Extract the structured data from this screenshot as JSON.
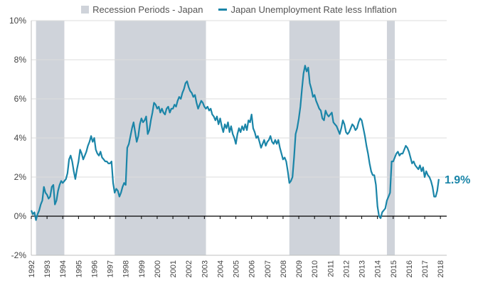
{
  "chart_data": {
    "type": "line",
    "legend": [
      {
        "name": "Recession Periods - Japan",
        "color": "#cfd3da"
      },
      {
        "name": "Japan Unemployment Rate less Inflation",
        "color": "#1a85a8"
      }
    ],
    "x_ticks": [
      "1992",
      "1993",
      "1994",
      "1995",
      "1996",
      "1997",
      "1998",
      "1999",
      "2000",
      "2001",
      "2002",
      "2003",
      "2004",
      "2005",
      "2006",
      "2007",
      "2008",
      "2009",
      "2010",
      "2011",
      "2012",
      "2013",
      "2014",
      "2015",
      "2016",
      "2017",
      "2018"
    ],
    "y_ticks": [
      "-2%",
      "0%",
      "2%",
      "4%",
      "6%",
      "8%",
      "10%"
    ],
    "y_tick_values": [
      -2,
      0,
      2,
      4,
      6,
      8,
      10
    ],
    "xlim": [
      1992.0,
      2018.4
    ],
    "ylim": [
      -2,
      10
    ],
    "recessions": [
      {
        "start": 1992.3,
        "end": 1994.1
      },
      {
        "start": 1997.3,
        "end": 2003.1
      },
      {
        "start": 2008.4,
        "end": 2011.6
      },
      {
        "start": 2014.6,
        "end": 2015.1
      }
    ],
    "end_label": "1.9%",
    "series": [
      {
        "color": "#1a85a8",
        "points": [
          [
            1992.0,
            0.3
          ],
          [
            1992.1,
            0.1
          ],
          [
            1992.2,
            0.2
          ],
          [
            1992.3,
            -0.2
          ],
          [
            1992.4,
            0.1
          ],
          [
            1992.5,
            0.3
          ],
          [
            1992.6,
            0.6
          ],
          [
            1992.7,
            0.8
          ],
          [
            1992.8,
            1.5
          ],
          [
            1992.9,
            1.2
          ],
          [
            1993.0,
            1.1
          ],
          [
            1993.1,
            0.9
          ],
          [
            1993.2,
            1.0
          ],
          [
            1993.3,
            1.5
          ],
          [
            1993.4,
            1.6
          ],
          [
            1993.5,
            0.6
          ],
          [
            1993.6,
            0.8
          ],
          [
            1993.7,
            1.3
          ],
          [
            1993.8,
            1.6
          ],
          [
            1993.9,
            1.8
          ],
          [
            1994.0,
            1.7
          ],
          [
            1994.1,
            1.8
          ],
          [
            1994.2,
            1.9
          ],
          [
            1994.3,
            2.2
          ],
          [
            1994.4,
            2.9
          ],
          [
            1994.5,
            3.1
          ],
          [
            1994.6,
            2.8
          ],
          [
            1994.7,
            2.3
          ],
          [
            1994.8,
            1.9
          ],
          [
            1994.9,
            2.4
          ],
          [
            1995.0,
            2.8
          ],
          [
            1995.1,
            3.4
          ],
          [
            1995.2,
            3.2
          ],
          [
            1995.3,
            2.9
          ],
          [
            1995.4,
            3.1
          ],
          [
            1995.5,
            3.3
          ],
          [
            1995.6,
            3.6
          ],
          [
            1995.7,
            3.8
          ],
          [
            1995.8,
            4.1
          ],
          [
            1995.9,
            3.8
          ],
          [
            1996.0,
            4.0
          ],
          [
            1996.1,
            3.4
          ],
          [
            1996.2,
            3.2
          ],
          [
            1996.3,
            3.1
          ],
          [
            1996.4,
            3.3
          ],
          [
            1996.5,
            3.0
          ],
          [
            1996.6,
            2.9
          ],
          [
            1996.7,
            2.8
          ],
          [
            1996.8,
            2.8
          ],
          [
            1996.9,
            2.7
          ],
          [
            1997.0,
            2.7
          ],
          [
            1997.1,
            2.8
          ],
          [
            1997.2,
            1.7
          ],
          [
            1997.3,
            1.2
          ],
          [
            1997.4,
            1.4
          ],
          [
            1997.5,
            1.3
          ],
          [
            1997.6,
            1.0
          ],
          [
            1997.7,
            1.2
          ],
          [
            1997.8,
            1.5
          ],
          [
            1997.9,
            1.7
          ],
          [
            1998.0,
            1.6
          ],
          [
            1998.1,
            3.5
          ],
          [
            1998.2,
            3.7
          ],
          [
            1998.3,
            4.1
          ],
          [
            1998.4,
            4.5
          ],
          [
            1998.5,
            4.8
          ],
          [
            1998.6,
            4.3
          ],
          [
            1998.7,
            3.8
          ],
          [
            1998.8,
            4.1
          ],
          [
            1998.9,
            4.7
          ],
          [
            1999.0,
            5.0
          ],
          [
            1999.1,
            4.8
          ],
          [
            1999.2,
            4.9
          ],
          [
            1999.3,
            5.1
          ],
          [
            1999.4,
            4.2
          ],
          [
            1999.5,
            4.4
          ],
          [
            1999.6,
            4.9
          ],
          [
            1999.7,
            5.3
          ],
          [
            1999.8,
            5.8
          ],
          [
            1999.9,
            5.7
          ],
          [
            2000.0,
            5.5
          ],
          [
            2000.1,
            5.6
          ],
          [
            2000.2,
            5.3
          ],
          [
            2000.3,
            5.5
          ],
          [
            2000.4,
            5.3
          ],
          [
            2000.5,
            5.2
          ],
          [
            2000.6,
            5.5
          ],
          [
            2000.7,
            5.6
          ],
          [
            2000.8,
            5.3
          ],
          [
            2000.9,
            5.5
          ],
          [
            2001.0,
            5.5
          ],
          [
            2001.1,
            5.7
          ],
          [
            2001.2,
            5.6
          ],
          [
            2001.3,
            5.9
          ],
          [
            2001.4,
            6.1
          ],
          [
            2001.5,
            6.0
          ],
          [
            2001.6,
            6.3
          ],
          [
            2001.7,
            6.5
          ],
          [
            2001.8,
            6.8
          ],
          [
            2001.9,
            6.9
          ],
          [
            2002.0,
            6.6
          ],
          [
            2002.1,
            6.4
          ],
          [
            2002.2,
            6.3
          ],
          [
            2002.3,
            6.1
          ],
          [
            2002.4,
            6.2
          ],
          [
            2002.5,
            5.8
          ],
          [
            2002.6,
            5.5
          ],
          [
            2002.7,
            5.7
          ],
          [
            2002.8,
            5.9
          ],
          [
            2002.9,
            5.8
          ],
          [
            2003.0,
            5.6
          ],
          [
            2003.1,
            5.5
          ],
          [
            2003.2,
            5.6
          ],
          [
            2003.3,
            5.4
          ],
          [
            2003.4,
            5.5
          ],
          [
            2003.5,
            5.2
          ],
          [
            2003.6,
            5.1
          ],
          [
            2003.7,
            4.9
          ],
          [
            2003.8,
            5.1
          ],
          [
            2003.9,
            4.7
          ],
          [
            2004.0,
            5.0
          ],
          [
            2004.1,
            4.6
          ],
          [
            2004.2,
            4.3
          ],
          [
            2004.3,
            4.7
          ],
          [
            2004.4,
            4.5
          ],
          [
            2004.5,
            4.8
          ],
          [
            2004.6,
            4.3
          ],
          [
            2004.7,
            4.6
          ],
          [
            2004.8,
            4.2
          ],
          [
            2004.9,
            4.0
          ],
          [
            2005.0,
            3.7
          ],
          [
            2005.1,
            4.2
          ],
          [
            2005.2,
            4.5
          ],
          [
            2005.3,
            4.3
          ],
          [
            2005.4,
            4.6
          ],
          [
            2005.5,
            4.4
          ],
          [
            2005.6,
            4.7
          ],
          [
            2005.7,
            4.4
          ],
          [
            2005.8,
            4.9
          ],
          [
            2005.9,
            4.8
          ],
          [
            2006.0,
            5.2
          ],
          [
            2006.1,
            4.5
          ],
          [
            2006.2,
            4.3
          ],
          [
            2006.3,
            4.0
          ],
          [
            2006.4,
            4.1
          ],
          [
            2006.5,
            3.8
          ],
          [
            2006.6,
            3.5
          ],
          [
            2006.7,
            3.7
          ],
          [
            2006.8,
            3.9
          ],
          [
            2006.9,
            3.6
          ],
          [
            2007.0,
            3.8
          ],
          [
            2007.1,
            3.9
          ],
          [
            2007.2,
            4.1
          ],
          [
            2007.3,
            3.8
          ],
          [
            2007.4,
            3.7
          ],
          [
            2007.5,
            3.9
          ],
          [
            2007.6,
            3.7
          ],
          [
            2007.7,
            3.9
          ],
          [
            2007.8,
            3.5
          ],
          [
            2007.9,
            3.2
          ],
          [
            2008.0,
            2.9
          ],
          [
            2008.1,
            3.0
          ],
          [
            2008.2,
            2.8
          ],
          [
            2008.3,
            2.3
          ],
          [
            2008.4,
            1.7
          ],
          [
            2008.5,
            1.8
          ],
          [
            2008.6,
            2.0
          ],
          [
            2008.7,
            3.0
          ],
          [
            2008.8,
            4.2
          ],
          [
            2008.9,
            4.5
          ],
          [
            2009.0,
            5.0
          ],
          [
            2009.1,
            5.6
          ],
          [
            2009.2,
            6.5
          ],
          [
            2009.3,
            7.3
          ],
          [
            2009.4,
            7.7
          ],
          [
            2009.5,
            7.4
          ],
          [
            2009.6,
            7.6
          ],
          [
            2009.7,
            6.8
          ],
          [
            2009.8,
            6.5
          ],
          [
            2009.9,
            6.1
          ],
          [
            2010.0,
            6.2
          ],
          [
            2010.1,
            5.9
          ],
          [
            2010.2,
            5.7
          ],
          [
            2010.3,
            5.5
          ],
          [
            2010.4,
            5.4
          ],
          [
            2010.5,
            5.0
          ],
          [
            2010.6,
            4.9
          ],
          [
            2010.7,
            5.4
          ],
          [
            2010.8,
            5.2
          ],
          [
            2010.9,
            5.1
          ],
          [
            2011.0,
            5.2
          ],
          [
            2011.1,
            5.3
          ],
          [
            2011.2,
            4.8
          ],
          [
            2011.3,
            4.7
          ],
          [
            2011.4,
            4.6
          ],
          [
            2011.5,
            4.4
          ],
          [
            2011.6,
            4.2
          ],
          [
            2011.7,
            4.5
          ],
          [
            2011.8,
            4.9
          ],
          [
            2011.9,
            4.7
          ],
          [
            2012.0,
            4.3
          ],
          [
            2012.1,
            4.2
          ],
          [
            2012.2,
            4.3
          ],
          [
            2012.3,
            4.5
          ],
          [
            2012.4,
            4.7
          ],
          [
            2012.5,
            4.6
          ],
          [
            2012.6,
            4.4
          ],
          [
            2012.7,
            4.5
          ],
          [
            2012.8,
            4.8
          ],
          [
            2012.9,
            5.0
          ],
          [
            2013.0,
            4.9
          ],
          [
            2013.1,
            4.5
          ],
          [
            2013.2,
            4.1
          ],
          [
            2013.3,
            3.6
          ],
          [
            2013.4,
            3.2
          ],
          [
            2013.5,
            2.7
          ],
          [
            2013.6,
            2.3
          ],
          [
            2013.7,
            2.1
          ],
          [
            2013.8,
            2.1
          ],
          [
            2013.9,
            1.6
          ],
          [
            2014.0,
            0.5
          ],
          [
            2014.1,
            0.0
          ],
          [
            2014.2,
            -0.1
          ],
          [
            2014.3,
            0.2
          ],
          [
            2014.4,
            0.3
          ],
          [
            2014.5,
            0.4
          ],
          [
            2014.6,
            0.8
          ],
          [
            2014.7,
            1.0
          ],
          [
            2014.8,
            1.2
          ],
          [
            2014.9,
            2.8
          ],
          [
            2015.0,
            2.8
          ],
          [
            2015.1,
            3.0
          ],
          [
            2015.2,
            3.2
          ],
          [
            2015.3,
            3.3
          ],
          [
            2015.4,
            3.1
          ],
          [
            2015.5,
            3.2
          ],
          [
            2015.6,
            3.2
          ],
          [
            2015.7,
            3.4
          ],
          [
            2015.8,
            3.6
          ],
          [
            2015.9,
            3.5
          ],
          [
            2016.0,
            3.3
          ],
          [
            2016.1,
            3.0
          ],
          [
            2016.2,
            2.7
          ],
          [
            2016.3,
            2.8
          ],
          [
            2016.4,
            2.6
          ],
          [
            2016.5,
            2.5
          ],
          [
            2016.6,
            2.4
          ],
          [
            2016.7,
            2.6
          ],
          [
            2016.8,
            2.3
          ],
          [
            2016.9,
            2.5
          ],
          [
            2017.0,
            2.0
          ],
          [
            2017.1,
            2.3
          ],
          [
            2017.2,
            2.1
          ],
          [
            2017.3,
            2.0
          ],
          [
            2017.4,
            1.8
          ],
          [
            2017.5,
            1.5
          ],
          [
            2017.6,
            1.0
          ],
          [
            2017.7,
            1.0
          ],
          [
            2017.8,
            1.3
          ],
          [
            2017.9,
            1.9
          ]
        ]
      }
    ]
  }
}
